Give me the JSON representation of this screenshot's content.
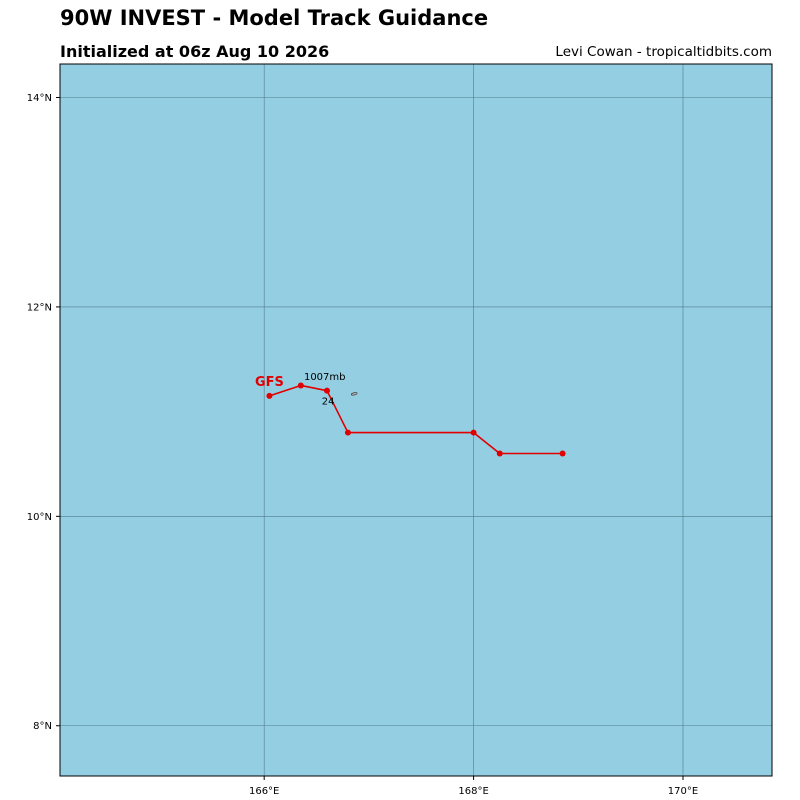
{
  "title": "90W INVEST - Model Track Guidance",
  "subtitle": "Initialized at 06z Aug 10 2026",
  "credit": "Levi Cowan - tropicaltidbits.com",
  "colors": {
    "ocean": "#94cee3",
    "grid": "#4f7a87",
    "track": "#e00000",
    "frame": "#000000"
  },
  "map": {
    "lon_range": [
      164.05,
      170.85
    ],
    "lat_range": [
      7.52,
      14.32
    ],
    "lon_ticks": [
      {
        "value": 166,
        "label": "166°E"
      },
      {
        "value": 168,
        "label": "168°E"
      },
      {
        "value": 170,
        "label": "170°E"
      }
    ],
    "lat_ticks": [
      {
        "value": 8,
        "label": "8°N"
      },
      {
        "value": 10,
        "label": "10°N"
      },
      {
        "value": 12,
        "label": "12°N"
      },
      {
        "value": 14,
        "label": "14°N"
      }
    ],
    "grid": true
  },
  "tracks": [
    {
      "model": "GFS",
      "points": [
        {
          "lon": 166.05,
          "lat": 11.15
        },
        {
          "lon": 166.35,
          "lat": 11.25
        },
        {
          "lon": 166.6,
          "lat": 11.2
        },
        {
          "lon": 166.8,
          "lat": 10.8
        },
        {
          "lon": 168.0,
          "lat": 10.8
        },
        {
          "lon": 168.25,
          "lat": 10.6
        },
        {
          "lon": 168.85,
          "lat": 10.6
        }
      ]
    }
  ],
  "annotations": [
    {
      "text": "1007mb",
      "lon": 166.38,
      "lat": 11.3
    },
    {
      "text": "24",
      "lon": 166.55,
      "lat": 11.07
    }
  ],
  "islands": [
    {
      "name": "",
      "lon": 166.86,
      "lat": 11.17
    }
  ]
}
